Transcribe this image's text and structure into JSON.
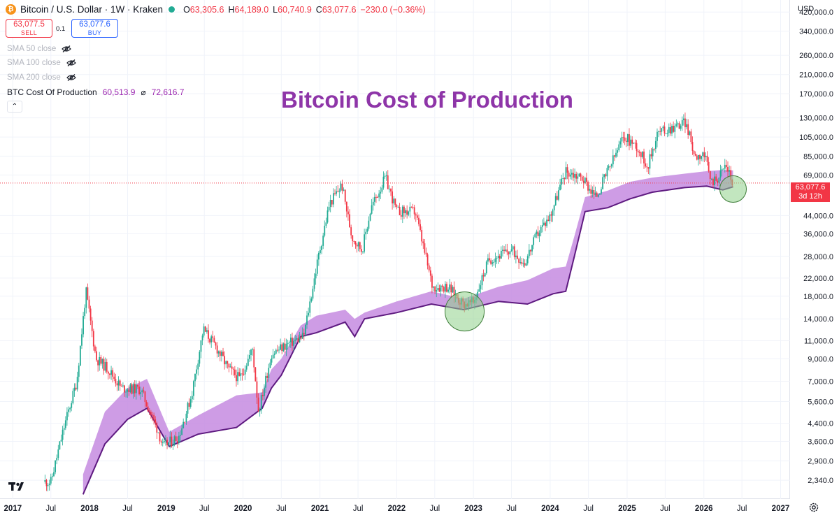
{
  "header": {
    "symbol_icon": "₿",
    "title": "Bitcoin / U.S. Dollar · 1W · Kraken",
    "ohlc": {
      "o_label": "O",
      "o": "63,305.6",
      "h_label": "H",
      "h": "64,189.0",
      "l_label": "L",
      "l": "60,740.9",
      "c_label": "C",
      "c": "63,077.6",
      "change": "−230.0 (−0.36%)"
    }
  },
  "trade": {
    "sell_price": "63,077.5",
    "sell_label": "SELL",
    "spread": "0.1",
    "buy_price": "63,077.6",
    "buy_label": "BUY"
  },
  "indicators": [
    {
      "label": "SMA 50 close",
      "icon": "eye-off-icon",
      "active": false
    },
    {
      "label": "SMA 100 close",
      "icon": "eye-off-icon",
      "active": false
    },
    {
      "label": "SMA 200 close",
      "icon": "eye-off-icon",
      "active": false
    },
    {
      "label": "BTC Cost Of Production",
      "value1": "60,513.9",
      "sep": "⌀",
      "value2": "72,616.7",
      "active": true
    }
  ],
  "collapse_icon": "⌃",
  "annotation_title": "Bitcoin Cost of Production",
  "currency": "USD",
  "current_price_tag": {
    "price": "63,077.6",
    "countdown": "3d 12h"
  },
  "colors": {
    "up": "#22ab94",
    "down": "#f23645",
    "band_fill": "#c58be0",
    "band_edge": "#5e1a80",
    "title": "#8e35a8",
    "circle_fill": "#8fd18b"
  },
  "chart_data": {
    "type": "line",
    "title": "Bitcoin Cost of Production",
    "xlabel": "",
    "ylabel": "",
    "y_scale": "log",
    "ylim": [
      1900,
      480000
    ],
    "xlim": [
      "2016-11-01",
      "2027-02-15"
    ],
    "x_tick_labels": [
      "2017",
      "Jul",
      "2018",
      "Jul",
      "2019",
      "Jul",
      "2020",
      "Jul",
      "2021",
      "Jul",
      "2022",
      "Jul",
      "2023",
      "Jul",
      "2024",
      "Jul",
      "2025",
      "Jul",
      "2026",
      "Jul",
      "2027"
    ],
    "y_tick_labels": [
      "420,000.0",
      "340,000.0",
      "260,000.0",
      "210,000.0",
      "170,000.0",
      "130,000.0",
      "105,000.0",
      "85,000.0",
      "69,000.0",
      "44,000.0",
      "36,000.0",
      "28,000.0",
      "22,000.0",
      "18,000.0",
      "14,000.0",
      "11,000.0",
      "9,000.0",
      "7,000.0",
      "5,600.0",
      "4,400.0",
      "3,600.0",
      "2,900.0",
      "2,340.0"
    ],
    "grid": true,
    "series": [
      {
        "name": "Bitcoin / U.S. Dollar",
        "kind": "price",
        "points": [
          [
            "2017-07-01",
            2300
          ],
          [
            "2017-09-01",
            4200
          ],
          [
            "2017-11-01",
            7000
          ],
          [
            "2017-12-15",
            19000
          ],
          [
            "2018-02-01",
            9000
          ],
          [
            "2018-04-01",
            8000
          ],
          [
            "2018-06-01",
            6500
          ],
          [
            "2018-09-01",
            6400
          ],
          [
            "2018-11-25",
            4000
          ],
          [
            "2018-12-15",
            3400
          ],
          [
            "2019-03-01",
            3800
          ],
          [
            "2019-05-01",
            6000
          ],
          [
            "2019-06-26",
            12500
          ],
          [
            "2019-09-01",
            10000
          ],
          [
            "2019-10-25",
            8000
          ],
          [
            "2019-12-15",
            7200
          ],
          [
            "2020-02-15",
            10000
          ],
          [
            "2020-03-15",
            5000
          ],
          [
            "2020-05-15",
            9500
          ],
          [
            "2020-07-25",
            10500
          ],
          [
            "2020-10-15",
            11500
          ],
          [
            "2020-12-25",
            28000
          ],
          [
            "2021-02-15",
            50000
          ],
          [
            "2021-04-15",
            62000
          ],
          [
            "2021-06-01",
            35000
          ],
          [
            "2021-07-20",
            30000
          ],
          [
            "2021-09-01",
            48000
          ],
          [
            "2021-11-08",
            67000
          ],
          [
            "2022-01-01",
            46000
          ],
          [
            "2022-03-30",
            46000
          ],
          [
            "2022-06-20",
            20000
          ],
          [
            "2022-09-01",
            20000
          ],
          [
            "2022-11-15",
            16500
          ],
          [
            "2023-01-01",
            16800
          ],
          [
            "2023-03-15",
            27000
          ],
          [
            "2023-07-01",
            30000
          ],
          [
            "2023-09-01",
            26000
          ],
          [
            "2023-11-01",
            36000
          ],
          [
            "2024-01-01",
            44000
          ],
          [
            "2024-03-14",
            72000
          ],
          [
            "2024-06-01",
            67000
          ],
          [
            "2024-08-05",
            54000
          ],
          [
            "2024-11-15",
            90000
          ],
          [
            "2024-12-17",
            106000
          ],
          [
            "2025-02-15",
            95000
          ],
          [
            "2025-04-09",
            76000
          ],
          [
            "2025-05-25",
            110000
          ],
          [
            "2025-08-15",
            118000
          ],
          [
            "2025-10-06",
            124000
          ],
          [
            "2025-11-20",
            85000
          ],
          [
            "2025-12-31",
            88000
          ],
          [
            "2026-02-05",
            64000
          ],
          [
            "2026-03-15",
            68000
          ],
          [
            "2026-04-15",
            78000
          ],
          [
            "2026-05-20",
            63077.6
          ]
        ]
      },
      {
        "name": "BTC Cost Of Production",
        "kind": "band",
        "lower_upper": [
          [
            "2017-12-01",
            2000,
            2500
          ],
          [
            "2018-03-15",
            3500,
            5000
          ],
          [
            "2018-07-01",
            4600,
            6500
          ],
          [
            "2018-10-01",
            5200,
            7200
          ],
          [
            "2019-01-15",
            3400,
            4000
          ],
          [
            "2019-06-01",
            3900,
            4800
          ],
          [
            "2019-12-01",
            4200,
            6000
          ],
          [
            "2020-04-01",
            5200,
            6200
          ],
          [
            "2020-05-15",
            6500,
            8000
          ],
          [
            "2020-07-01",
            7500,
            9000
          ],
          [
            "2020-10-01",
            11500,
            13000
          ],
          [
            "2020-12-15",
            12000,
            14500
          ],
          [
            "2021-05-01",
            13500,
            15500
          ],
          [
            "2021-06-15",
            11500,
            14000
          ],
          [
            "2021-08-01",
            14000,
            15000
          ],
          [
            "2022-01-01",
            15000,
            17000
          ],
          [
            "2022-06-15",
            16500,
            19000
          ],
          [
            "2022-11-15",
            15500,
            17500
          ],
          [
            "2023-05-01",
            17000,
            20000
          ],
          [
            "2023-09-15",
            16500,
            21500
          ],
          [
            "2024-01-15",
            18500,
            24500
          ],
          [
            "2024-03-15",
            19000,
            25000
          ],
          [
            "2024-04-25",
            28000,
            35000
          ],
          [
            "2024-06-15",
            46000,
            54000
          ],
          [
            "2024-10-01",
            48000,
            58000
          ],
          [
            "2025-01-15",
            53000,
            64000
          ],
          [
            "2025-05-01",
            57000,
            67000
          ],
          [
            "2025-10-01",
            60000,
            70000
          ],
          [
            "2026-01-15",
            61000,
            72000
          ],
          [
            "2026-04-01",
            58500,
            73000
          ],
          [
            "2026-05-20",
            60513.9,
            72616.7
          ]
        ]
      }
    ],
    "annotations": [
      {
        "type": "circle",
        "x": "2022-11-20",
        "y": 15200
      },
      {
        "type": "circle",
        "x": "2026-05-20",
        "y": 59000
      }
    ]
  }
}
